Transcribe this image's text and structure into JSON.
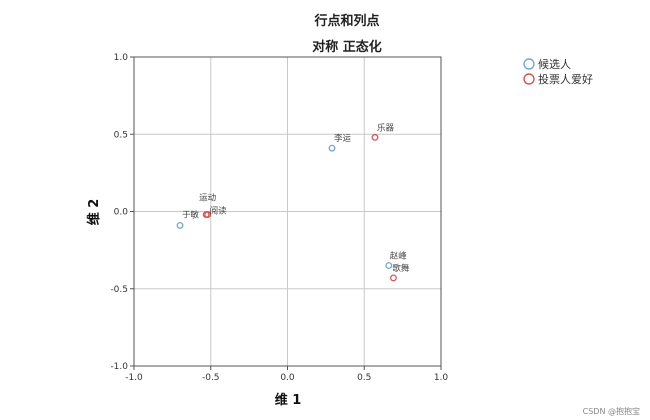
{
  "chart_data": {
    "type": "scatter",
    "title": "行点和列点",
    "subtitle": "对称 正态化",
    "xlabel": "维 1",
    "ylabel": "维 2",
    "xlim": [
      -1.0,
      1.0
    ],
    "ylim": [
      -1.0,
      1.0
    ],
    "x_ticks": [
      "-1.0",
      "-0.5",
      "0.0",
      "0.5",
      "1.0"
    ],
    "y_ticks": [
      "1.0",
      "0.5",
      "0.0",
      "-0.5",
      "-1.0"
    ],
    "grid": true,
    "legend_position": "top-right",
    "series": [
      {
        "name": "候选人",
        "color": "#6fa8dc",
        "points": [
          {
            "label": "于敏",
            "x": -0.7,
            "y": -0.09
          },
          {
            "label": "李运",
            "x": 0.29,
            "y": 0.41
          },
          {
            "label": "赵峰",
            "x": 0.66,
            "y": -0.35
          }
        ]
      },
      {
        "name": "投票人爱好",
        "color": "#d9534f",
        "points": [
          {
            "label": "运动",
            "x": -0.53,
            "y": -0.02
          },
          {
            "label": "阅读",
            "x": -0.52,
            "y": -0.02
          },
          {
            "label": "乐器",
            "x": 0.57,
            "y": 0.48
          },
          {
            "label": "歌舞",
            "x": 0.69,
            "y": -0.43
          }
        ]
      }
    ]
  },
  "watermark": "CSDN @抱抱宝"
}
